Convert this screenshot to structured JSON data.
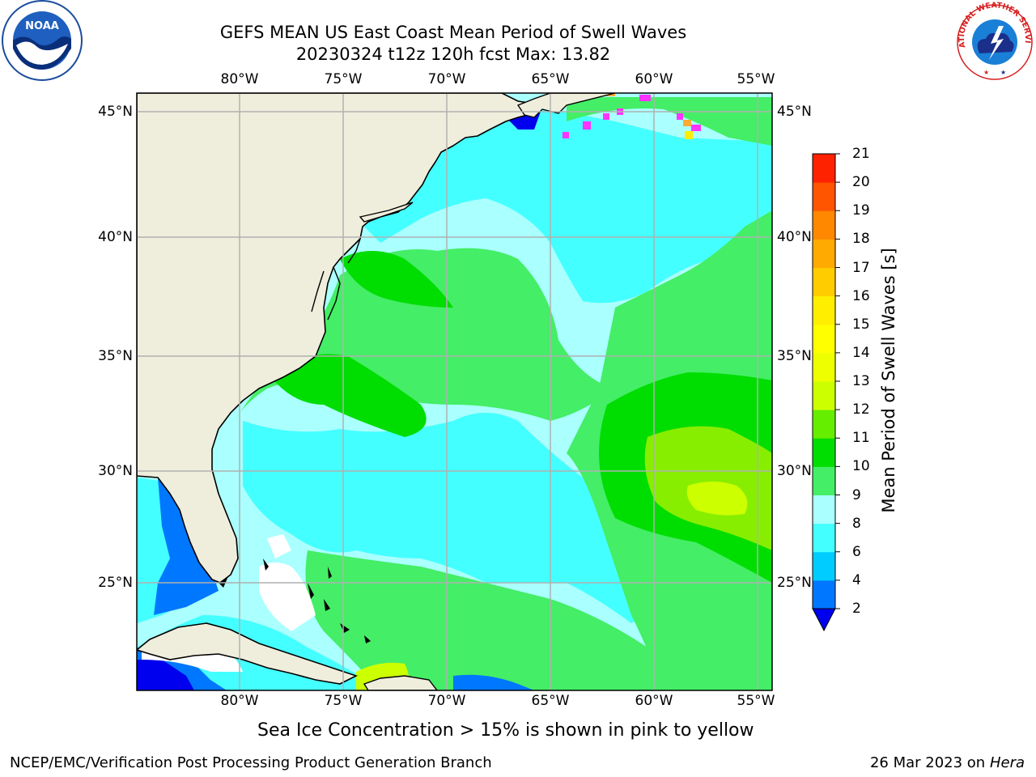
{
  "header": {
    "title_line1": "GEFS MEAN US East Coast Mean Period of Swell Waves",
    "title_line2": "20230324 t12z 120h fcst   Max: 13.82"
  },
  "logos": {
    "left": {
      "icon": "noaa-logo-icon",
      "text": "NOAA"
    },
    "right": {
      "icon": "nws-logo-icon",
      "text": "NATIONAL WEATHER SERVICE"
    }
  },
  "map": {
    "lon_labels": [
      "80°W",
      "75°W",
      "70°W",
      "65°W",
      "60°W",
      "55°W"
    ],
    "lat_labels": [
      "45°N",
      "40°N",
      "35°N",
      "30°N",
      "25°N"
    ],
    "land_color": "#efeedd",
    "grid_color": "#b0b0b0"
  },
  "colorbar": {
    "title": "Mean Period of Swell Waves [s]",
    "ticks": [
      "2",
      "4",
      "6",
      "8",
      "9",
      "10",
      "11",
      "12",
      "13",
      "14",
      "15",
      "16",
      "17",
      "18",
      "19",
      "20",
      "21"
    ],
    "colors": [
      "#0077ff",
      "#00ccff",
      "#44ffff",
      "#aaffff",
      "#44ee66",
      "#00dd00",
      "#66ee00",
      "#ccff00",
      "#eeff00",
      "#ffff00",
      "#ffee00",
      "#ffcc00",
      "#ffaa00",
      "#ff8800",
      "#ff5500",
      "#ff2200"
    ],
    "under_color": "#0000ee"
  },
  "note": "Sea Ice Concentration > 15% is shown in pink to yellow",
  "footer": {
    "left": "NCEP/EMC/Verification Post Processing Product Generation Branch",
    "right_date": "26 Mar 2023 on",
    "right_host": "Hera"
  }
}
